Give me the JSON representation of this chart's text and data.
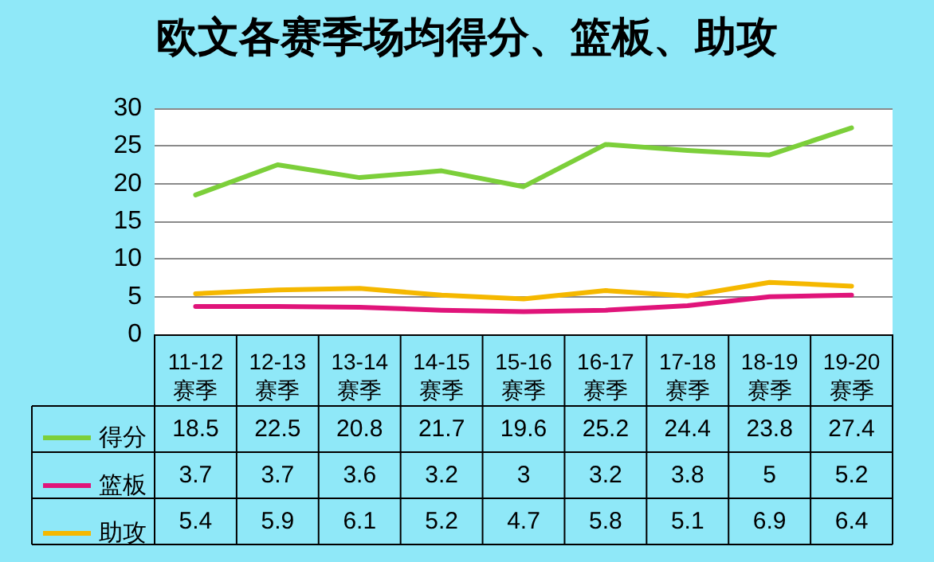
{
  "chart_data": {
    "type": "line",
    "title": "欧文各赛季场均得分、篮板、助攻",
    "categories": [
      "11-12\n赛季",
      "12-13\n赛季",
      "13-14\n赛季",
      "14-15\n赛季",
      "15-16\n赛季",
      "16-17\n赛季",
      "17-18\n赛季",
      "18-19\n赛季",
      "19-20\n赛季"
    ],
    "series": [
      {
        "name": "得分",
        "color": "#7ccf3a",
        "values": [
          18.5,
          22.5,
          20.8,
          21.7,
          19.6,
          25.2,
          24.4,
          23.8,
          27.4
        ]
      },
      {
        "name": "篮板",
        "color": "#e0147a",
        "values": [
          3.7,
          3.7,
          3.6,
          3.2,
          3,
          3.2,
          3.8,
          5,
          5.2
        ]
      },
      {
        "name": "助攻",
        "color": "#f5b800",
        "values": [
          5.4,
          5.9,
          6.1,
          5.2,
          4.7,
          5.8,
          5.1,
          6.9,
          6.4
        ]
      }
    ],
    "ylim": [
      0,
      30
    ],
    "yticks": [
      0,
      5,
      10,
      15,
      20,
      25,
      30
    ],
    "grid": "y",
    "legend": "bottom left",
    "marker": "none",
    "line_style": "solid",
    "data_labels": true
  }
}
